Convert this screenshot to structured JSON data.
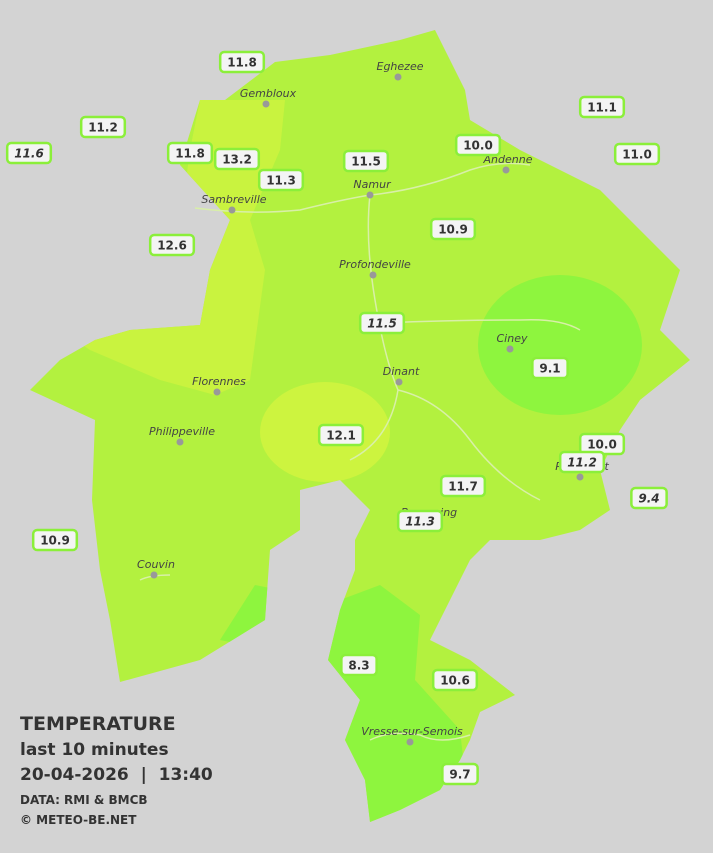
{
  "legend": {
    "title": "TEMPERATURE",
    "subtitle": "last 10 minutes",
    "datetime": "20-04-2026  |  13:40",
    "source": "DATA: RMI & BMCB",
    "credit": "© METEO-BE.NET"
  },
  "towns": [
    "Eghezee",
    "Gembloux",
    "Andenne",
    "Sambreville",
    "Namur",
    "Profondeville",
    "Ciney",
    "Dinant",
    "Florennes",
    "Philippeville",
    "Rochefort",
    "Beauraing",
    "Couvin",
    "Vresse-sur-Semois"
  ],
  "stations": [
    {
      "label": "11.8",
      "italic": false
    },
    {
      "label": "11.2",
      "italic": false
    },
    {
      "label": "11.6",
      "italic": true
    },
    {
      "label": "11.8",
      "italic": false
    },
    {
      "label": "13.2",
      "italic": false
    },
    {
      "label": "11.3",
      "italic": false
    },
    {
      "label": "11.5",
      "italic": false
    },
    {
      "label": "10.0",
      "italic": false
    },
    {
      "label": "11.1",
      "italic": false
    },
    {
      "label": "11.0",
      "italic": false
    },
    {
      "label": "12.6",
      "italic": false
    },
    {
      "label": "10.9",
      "italic": false
    },
    {
      "label": "11.5",
      "italic": true
    },
    {
      "label": "9.1",
      "italic": false
    },
    {
      "label": "12.1",
      "italic": false
    },
    {
      "label": "10.0",
      "italic": false
    },
    {
      "label": "11.2",
      "italic": true
    },
    {
      "label": "9.4",
      "italic": true
    },
    {
      "label": "11.7",
      "italic": false
    },
    {
      "label": "11.3",
      "italic": true
    },
    {
      "label": "10.9",
      "italic": false
    },
    {
      "label": "8.3",
      "italic": false
    },
    {
      "label": "10.6",
      "italic": false
    },
    {
      "label": "9.7",
      "italic": false
    }
  ]
}
